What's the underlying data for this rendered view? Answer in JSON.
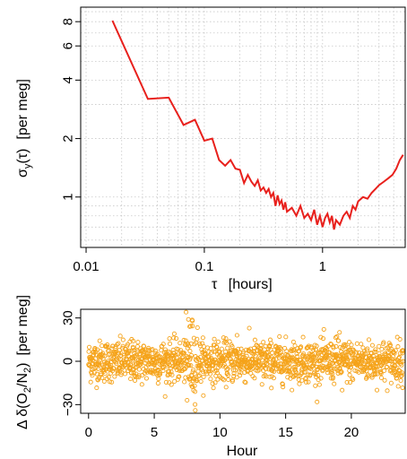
{
  "chart_data": [
    {
      "type": "line",
      "title": "",
      "xlabel_symbol": "τ",
      "xlabel_unit": "[hours]",
      "ylabel_symbol": "σ",
      "ylabel_sub": "y",
      "ylabel_arg": "(τ)",
      "ylabel_unit": "[per meg]",
      "x_scale": "log",
      "y_scale": "log",
      "xlim": [
        0.009,
        5.0
      ],
      "ylim": [
        0.55,
        9.5
      ],
      "x_ticks": [
        0.01,
        0.1,
        1
      ],
      "x_tick_labels": [
        "0.01",
        "0.1",
        "1"
      ],
      "y_ticks": [
        1,
        2,
        4,
        6,
        8
      ],
      "y_tick_labels": [
        "1",
        "2",
        "4",
        "6",
        "8"
      ],
      "grid": true,
      "color": "#e8201c",
      "series": [
        {
          "name": "",
          "x": [
            0.0167,
            0.0333,
            0.05,
            0.0667,
            0.0833,
            0.1,
            0.1167,
            0.1333,
            0.15,
            0.1667,
            0.1833,
            0.2,
            0.2167,
            0.2333,
            0.25,
            0.2667,
            0.2833,
            0.3,
            0.3167,
            0.3333,
            0.35,
            0.3667,
            0.3833,
            0.4,
            0.4167,
            0.4333,
            0.45,
            0.4667,
            0.4833,
            0.5,
            0.55,
            0.6,
            0.65,
            0.7,
            0.75,
            0.8,
            0.85,
            0.9,
            0.95,
            1.0,
            1.05,
            1.1,
            1.15,
            1.2,
            1.25,
            1.3,
            1.4,
            1.5,
            1.6,
            1.7,
            1.8,
            1.9,
            2.0,
            2.2,
            2.4,
            2.6,
            2.8,
            3.0,
            3.3,
            3.6,
            3.9,
            4.2,
            4.5,
            4.8
          ],
          "y": [
            8.1,
            3.2,
            3.25,
            2.35,
            2.5,
            1.95,
            2.0,
            1.55,
            1.45,
            1.55,
            1.4,
            1.38,
            1.18,
            1.3,
            1.2,
            1.14,
            1.22,
            1.08,
            1.12,
            1.05,
            1.1,
            1.0,
            1.05,
            0.9,
            1.02,
            0.92,
            0.96,
            0.86,
            0.94,
            0.84,
            0.88,
            0.8,
            0.9,
            0.78,
            0.82,
            0.76,
            0.86,
            0.72,
            0.8,
            0.7,
            0.78,
            0.82,
            0.74,
            0.8,
            0.68,
            0.76,
            0.72,
            0.8,
            0.84,
            0.78,
            0.9,
            0.86,
            0.95,
            1.0,
            0.98,
            1.05,
            1.1,
            1.15,
            1.2,
            1.25,
            1.3,
            1.4,
            1.55,
            1.65
          ]
        }
      ]
    },
    {
      "type": "scatter",
      "title": "",
      "xlabel": "Hour",
      "ylabel_prefix": "Δ δ(O",
      "ylabel_sub1": "2",
      "ylabel_mid": "/N",
      "ylabel_sub2": "2",
      "ylabel_suffix": ")",
      "ylabel_unit": "[per meg]",
      "xlim": [
        -0.6,
        24.1
      ],
      "ylim": [
        -36,
        36
      ],
      "x_ticks": [
        0,
        5,
        10,
        15,
        20
      ],
      "x_tick_labels": [
        "0",
        "5",
        "10",
        "15",
        "20"
      ],
      "y_ticks": [
        -30,
        0,
        30
      ],
      "y_tick_labels": [
        "−30",
        "0",
        "30"
      ],
      "grid": false,
      "color": "#f5a31a",
      "x_range": [
        0,
        23.95
      ],
      "n_points": 1440,
      "typical_spread": 7,
      "notable_points": [
        {
          "x": 7.6,
          "y": 29
        },
        {
          "x": 7.9,
          "y": 28
        },
        {
          "x": 7.7,
          "y": 24
        },
        {
          "x": 7.5,
          "y": -27
        },
        {
          "x": 8.1,
          "y": -21
        },
        {
          "x": 7.8,
          "y": -16
        },
        {
          "x": 19.1,
          "y": 20
        },
        {
          "x": 19.3,
          "y": -20
        },
        {
          "x": 18.9,
          "y": 17
        },
        {
          "x": 11.3,
          "y": 18
        },
        {
          "x": 13.2,
          "y": -16
        },
        {
          "x": 3.4,
          "y": 14
        }
      ]
    }
  ]
}
